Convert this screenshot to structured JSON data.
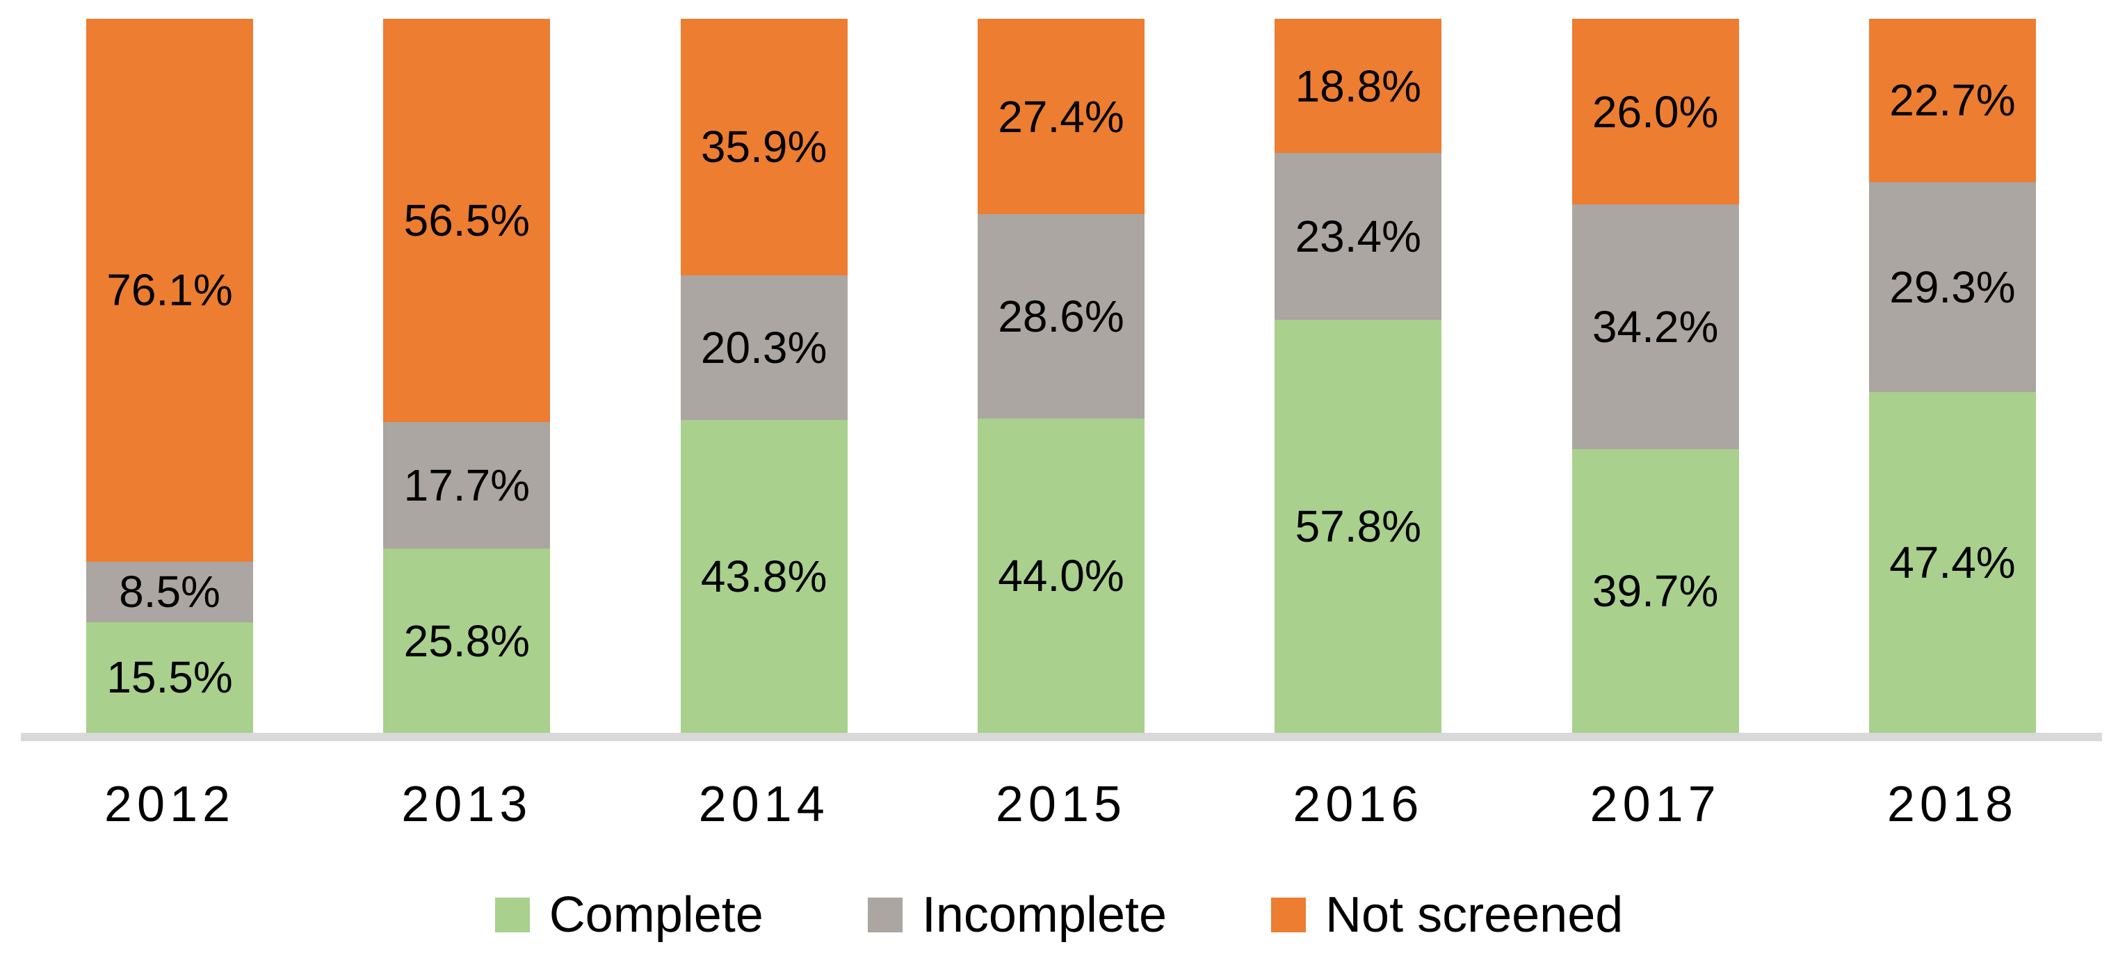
{
  "chart_data": {
    "type": "bar",
    "variant": "stacked-100-percent-column",
    "title": "",
    "xlabel": "",
    "ylabel": "",
    "ylim": [
      0,
      100
    ],
    "grid": false,
    "categories": [
      "2012",
      "2013",
      "2014",
      "2015",
      "2016",
      "2017",
      "2018"
    ],
    "series": [
      {
        "name": "Complete",
        "color": "#A9D08D",
        "values": [
          15.5,
          25.8,
          43.8,
          44.0,
          57.8,
          39.7,
          47.4
        ],
        "labels": [
          "15.5%",
          "25.8%",
          "43.8%",
          "44.0%",
          "57.8%",
          "39.7%",
          "47.4%"
        ]
      },
      {
        "name": "Incomplete",
        "color": "#ABA6A1",
        "values": [
          8.5,
          17.7,
          20.3,
          28.6,
          23.4,
          34.2,
          29.3
        ],
        "labels": [
          "8.5%",
          "17.7%",
          "20.3%",
          "28.6%",
          "23.4%",
          "34.2%",
          "29.3%"
        ]
      },
      {
        "name": "Not screened",
        "color": "#ED7D31",
        "values": [
          76.1,
          56.5,
          35.9,
          27.4,
          18.8,
          26.0,
          22.7
        ],
        "labels": [
          "76.1%",
          "56.5%",
          "35.9%",
          "27.4%",
          "18.8%",
          "26.0%",
          "22.7%"
        ]
      }
    ],
    "legend": {
      "position": "bottom",
      "items": [
        "Complete",
        "Incomplete",
        "Not screened"
      ]
    },
    "axis": {
      "baseline_color": "#D9D9D9",
      "tick_label_color": "#000000",
      "data_label_color": "#000000"
    }
  }
}
